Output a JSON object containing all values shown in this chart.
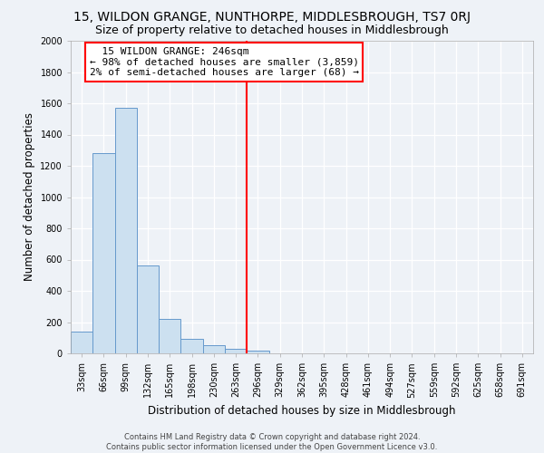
{
  "title": "15, WILDON GRANGE, NUNTHORPE, MIDDLESBROUGH, TS7 0RJ",
  "subtitle": "Size of property relative to detached houses in Middlesbrough",
  "xlabel": "Distribution of detached houses by size in Middlesbrough",
  "ylabel": "Number of detached properties",
  "footer_line1": "Contains HM Land Registry data © Crown copyright and database right 2024.",
  "footer_line2": "Contains public sector information licensed under the Open Government Licence v3.0.",
  "categories": [
    "33sqm",
    "66sqm",
    "99sqm",
    "132sqm",
    "165sqm",
    "198sqm",
    "230sqm",
    "263sqm",
    "296sqm",
    "329sqm",
    "362sqm",
    "395sqm",
    "428sqm",
    "461sqm",
    "494sqm",
    "527sqm",
    "559sqm",
    "592sqm",
    "625sqm",
    "658sqm",
    "691sqm"
  ],
  "values": [
    140,
    1280,
    1570,
    560,
    220,
    95,
    50,
    28,
    15,
    0,
    0,
    0,
    0,
    0,
    0,
    0,
    0,
    0,
    0,
    0,
    0
  ],
  "bar_color": "#cce0f0",
  "bar_edge_color": "#6699cc",
  "property_line_x": 7.5,
  "property_line_color": "red",
  "annotation_line1": "  15 WILDON GRANGE: 246sqm",
  "annotation_line2": "← 98% of detached houses are smaller (3,859)",
  "annotation_line3": "2% of semi-detached houses are larger (68) →",
  "annotation_box_color": "white",
  "annotation_box_edge_color": "red",
  "ylim": [
    0,
    2000
  ],
  "yticks": [
    0,
    200,
    400,
    600,
    800,
    1000,
    1200,
    1400,
    1600,
    1800,
    2000
  ],
  "background_color": "#eef2f7",
  "grid_color": "white",
  "title_fontsize": 10,
  "subtitle_fontsize": 9,
  "axis_label_fontsize": 8.5,
  "tick_fontsize": 7,
  "annotation_fontsize": 8
}
